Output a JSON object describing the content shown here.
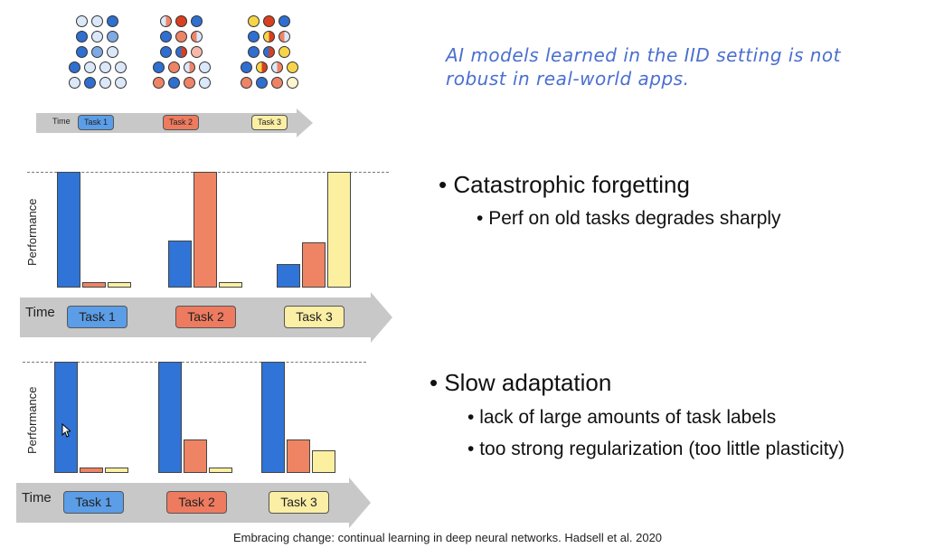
{
  "colors": {
    "L": "#dbe8fa",
    "B": "#2f6fcf",
    "M": "#7fa9e3",
    "R": "#d9401f",
    "O": "#ee8466",
    "P": "#f5b8ab",
    "Y": "#f7d54a",
    "W": "#fdf5cf",
    "task1": "#5b9de6",
    "task2": "#ee7b5f",
    "task3": "#fbeea5",
    "bar_blue": "#2f74d6",
    "bar_orange": "#ee8463",
    "bar_yellow": "#fcf0a0",
    "annotation": "#4a6fd0"
  },
  "top_diagram": {
    "time_label": "Time",
    "tasks": [
      "Task 1",
      "Task 2",
      "Task 3"
    ],
    "dot_groups": [
      [
        [
          "L",
          "L",
          "B"
        ],
        [
          "B",
          "L",
          "M"
        ],
        [
          "B",
          "M",
          "L"
        ],
        [
          "B",
          "L",
          "L",
          "L"
        ],
        [
          "L",
          "B",
          "L",
          "L"
        ]
      ],
      [
        [
          "L|O",
          "R",
          "B"
        ],
        [
          "B",
          "O",
          "O|L"
        ],
        [
          "B",
          "B|R",
          "P"
        ],
        [
          "B",
          "O",
          "L|O",
          "L"
        ],
        [
          "O",
          "B",
          "O",
          "L"
        ]
      ],
      [
        [
          "Y",
          "R",
          "B"
        ],
        [
          "B",
          "Y|R",
          "O|L"
        ],
        [
          "B",
          "B|R",
          "Y"
        ],
        [
          "B",
          "Y|R",
          "L|O",
          "Y"
        ],
        [
          "O",
          "B",
          "O",
          "W"
        ]
      ]
    ]
  },
  "annotation": "AI models learned in the IID setting is not robust in real-world apps.",
  "chart_data": [
    {
      "type": "bar",
      "ylabel": "Performance",
      "xlabel": "Time",
      "categories": [
        "Task 1",
        "Task 2",
        "Task 3"
      ],
      "ylim": [
        0,
        1
      ],
      "reference_line": 1,
      "series": [
        {
          "values": [
            1.0,
            0.41,
            0.2
          ]
        },
        {
          "values": [
            0.05,
            1.0,
            0.39
          ]
        },
        {
          "values": [
            0.05,
            0.05,
            1.0
          ]
        }
      ]
    },
    {
      "type": "bar",
      "ylabel": "Performance",
      "xlabel": "Time",
      "categories": [
        "Task 1",
        "Task 2",
        "Task 3"
      ],
      "ylim": [
        0,
        1
      ],
      "reference_line": 1,
      "series": [
        {
          "values": [
            1.0,
            1.0,
            1.0
          ]
        },
        {
          "values": [
            0.05,
            0.3,
            0.3
          ]
        },
        {
          "values": [
            0.05,
            0.05,
            0.2
          ]
        }
      ]
    }
  ],
  "bullets": [
    {
      "title": "Catastrophic forgetting",
      "subs": [
        "Perf on old tasks degrades sharply"
      ]
    },
    {
      "title": "Slow adaptation",
      "subs": [
        "lack of large amounts of task labels",
        "too strong regularization (too little plasticity)"
      ]
    }
  ],
  "citation": "Embracing change: continual learning in deep neural networks. Hadsell et al. 2020"
}
